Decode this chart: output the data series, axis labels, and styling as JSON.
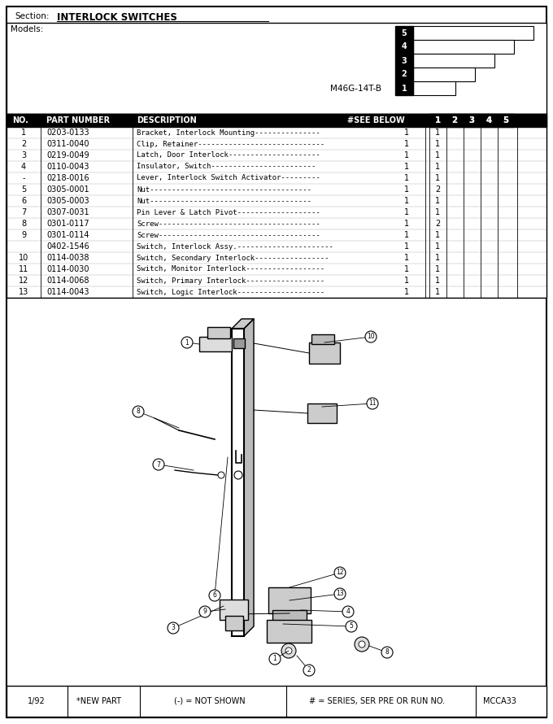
{
  "section_label": "Section:",
  "section_title": "INTERLOCK SWITCHES",
  "models_label": "Models:",
  "model_name": "M46G-14T-B",
  "parts": [
    {
      "no": "1",
      "part": "0203-0133",
      "desc": "Bracket, Interlock Mounting",
      "dashes": 15,
      "see_below": "1",
      "col1": "1"
    },
    {
      "no": "2",
      "part": "0311-0040",
      "desc": "Clip, Retainer",
      "dashes": 29,
      "see_below": "1",
      "col1": "1"
    },
    {
      "no": "3",
      "part": "0219-0049",
      "desc": "Latch, Door Interlock",
      "dashes": 21,
      "see_below": "1",
      "col1": "1"
    },
    {
      "no": "4",
      "part": "0110-0043",
      "desc": "Insulator, Switch",
      "dashes": 24,
      "see_below": "1",
      "col1": "1"
    },
    {
      "no": "-",
      "part": "0218-0016",
      "desc": "Lever, Interlock Switch Activator",
      "dashes": 9,
      "see_below": "1",
      "col1": "1"
    },
    {
      "no": "5",
      "part": "0305-0001",
      "desc": "Nut",
      "dashes": 37,
      "see_below": "1",
      "col1": "2"
    },
    {
      "no": "6",
      "part": "0305-0003",
      "desc": "Nut",
      "dashes": 37,
      "see_below": "1",
      "col1": "1"
    },
    {
      "no": "7",
      "part": "0307-0031",
      "desc": "Pin Lever & Latch Pivot",
      "dashes": 19,
      "see_below": "1",
      "col1": "1"
    },
    {
      "no": "8",
      "part": "0301-0117",
      "desc": "Screw",
      "dashes": 37,
      "see_below": "1",
      "col1": "2"
    },
    {
      "no": "9",
      "part": "0301-0114",
      "desc": "Screw",
      "dashes": 37,
      "see_below": "1",
      "col1": "1"
    },
    {
      "no": "",
      "part": "0402-1546",
      "desc": "Switch, Interlock Assy.",
      "dashes": 22,
      "see_below": "1",
      "col1": "1"
    },
    {
      "no": "10",
      "part": "0114-0038",
      "desc": "Switch, Secondary Interlock",
      "dashes": 17,
      "see_below": "1",
      "col1": "1"
    },
    {
      "no": "11",
      "part": "0114-0030",
      "desc": "Switch, Monitor Interlock",
      "dashes": 18,
      "see_below": "1",
      "col1": "1"
    },
    {
      "no": "12",
      "part": "0114-0068",
      "desc": "Switch, Primary Interlock",
      "dashes": 18,
      "see_below": "1",
      "col1": "1"
    },
    {
      "no": "13",
      "part": "0114-0043",
      "desc": "Switch, Logic Interlock",
      "dashes": 20,
      "see_below": "1",
      "col1": "1"
    }
  ],
  "footer_left": "1/92",
  "footer_new_part": "*NEW PART",
  "footer_not_shown": "(-) = NOT SHOWN",
  "footer_series": "# = SERIES, SER PRE OR RUN NO.",
  "footer_right": "MCCA33"
}
